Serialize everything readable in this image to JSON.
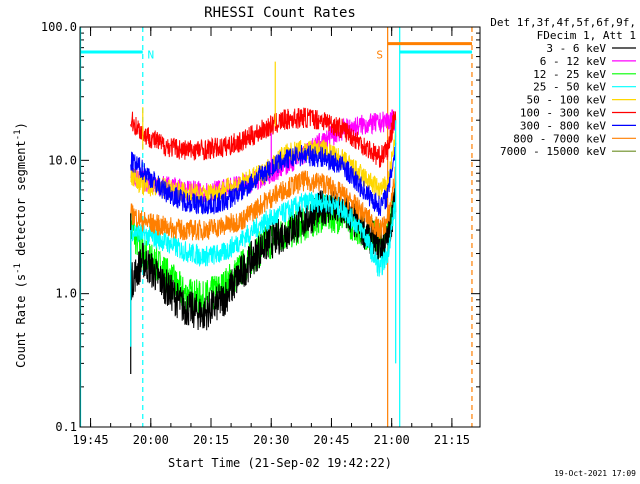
{
  "chart_data": {
    "type": "line",
    "title": "RHESSI Count Rates",
    "xlabel": "Start Time (21-Sep-02 19:42:22)",
    "ylabel_main": "Count Rate (s",
    "ylabel_exp1": "-1",
    "ylabel_mid": " detector segment",
    "ylabel_exp2": "-1",
    "ylabel_end": ")",
    "ylim": [
      0.1,
      100.0
    ],
    "y_scale": "log",
    "x_range": [
      "19:42:22",
      "21:22:00"
    ],
    "x_ticks": [
      "19:45",
      "20:00",
      "20:15",
      "20:30",
      "20:45",
      "21:00",
      "21:15"
    ],
    "y_ticks": [
      {
        "value": 0.1,
        "label": "0.1"
      },
      {
        "value": 1.0,
        "label": "1.0"
      },
      {
        "value": 10.0,
        "label": "10.0"
      },
      {
        "value": 100.0,
        "label": "100.0"
      }
    ],
    "legend_position": "right",
    "legend_header": [
      "Det 1f,3f,4f,5f,6f,9f,",
      "FDecim 1, Att 1"
    ],
    "series": [
      {
        "name": "3 - 6 keV",
        "color": "#000000",
        "points": [
          [
            "19:55",
            1.2
          ],
          [
            "19:58",
            1.8
          ],
          [
            "20:03",
            1.2
          ],
          [
            "20:08",
            0.8
          ],
          [
            "20:13",
            0.7
          ],
          [
            "20:18",
            0.9
          ],
          [
            "20:23",
            1.5
          ],
          [
            "20:28",
            2.3
          ],
          [
            "20:33",
            2.8
          ],
          [
            "20:38",
            3.5
          ],
          [
            "20:43",
            4.5
          ],
          [
            "20:48",
            4.2
          ],
          [
            "20:53",
            3.0
          ],
          [
            "20:57",
            2.3
          ],
          [
            "20:59",
            2.5
          ],
          [
            "21:01",
            5.5
          ]
        ]
      },
      {
        "name": "6 - 12 keV",
        "color": "#ff00ff",
        "points": [
          [
            "19:55",
            7.8
          ],
          [
            "19:58",
            7.0
          ],
          [
            "20:03",
            6.5
          ],
          [
            "20:08",
            6.0
          ],
          [
            "20:13",
            5.8
          ],
          [
            "20:18",
            6.0
          ],
          [
            "20:23",
            6.5
          ],
          [
            "20:28",
            7.5
          ],
          [
            "20:33",
            9.0
          ],
          [
            "20:38",
            11.0
          ],
          [
            "20:43",
            14.0
          ],
          [
            "20:48",
            17.0
          ],
          [
            "20:53",
            18.5
          ],
          [
            "20:57",
            19.0
          ],
          [
            "20:59",
            20.0
          ],
          [
            "21:01",
            20.0
          ]
        ]
      },
      {
        "name": "12 - 25 keV",
        "color": "#00ff00",
        "points": [
          [
            "19:55",
            3.2
          ],
          [
            "19:58",
            2.0
          ],
          [
            "20:03",
            1.5
          ],
          [
            "20:08",
            1.0
          ],
          [
            "20:13",
            0.9
          ],
          [
            "20:18",
            1.1
          ],
          [
            "20:23",
            1.6
          ],
          [
            "20:28",
            2.3
          ],
          [
            "20:33",
            2.8
          ],
          [
            "20:38",
            3.3
          ],
          [
            "20:43",
            4.0
          ],
          [
            "20:48",
            3.8
          ],
          [
            "20:53",
            3.0
          ],
          [
            "20:57",
            2.5
          ],
          [
            "20:59",
            2.6
          ],
          [
            "21:01",
            6.0
          ]
        ]
      },
      {
        "name": "25 - 50 keV",
        "color": "#00ffff",
        "points": [
          [
            "19:55",
            3.0
          ],
          [
            "19:58",
            2.8
          ],
          [
            "20:03",
            2.5
          ],
          [
            "20:08",
            2.1
          ],
          [
            "20:13",
            1.9
          ],
          [
            "20:18",
            2.0
          ],
          [
            "20:23",
            2.6
          ],
          [
            "20:28",
            3.4
          ],
          [
            "20:33",
            4.0
          ],
          [
            "20:38",
            4.8
          ],
          [
            "20:43",
            4.9
          ],
          [
            "20:48",
            4.3
          ],
          [
            "20:53",
            2.9
          ],
          [
            "20:57",
            1.5
          ],
          [
            "20:59",
            2.0
          ],
          [
            "21:01",
            5.0
          ]
        ]
      },
      {
        "name": "50 - 100 keV",
        "color": "#ffd700",
        "points": [
          [
            "19:55",
            8.0
          ],
          [
            "19:58",
            6.5
          ],
          [
            "20:03",
            6.2
          ],
          [
            "20:08",
            5.8
          ],
          [
            "20:13",
            5.5
          ],
          [
            "20:18",
            6.0
          ],
          [
            "20:23",
            6.8
          ],
          [
            "20:28",
            8.0
          ],
          [
            "20:33",
            11.0
          ],
          [
            "20:38",
            12.0
          ],
          [
            "20:43",
            12.0
          ],
          [
            "20:48",
            10.0
          ],
          [
            "20:53",
            7.5
          ],
          [
            "20:57",
            6.0
          ],
          [
            "20:59",
            6.5
          ],
          [
            "21:01",
            15.0
          ]
        ]
      },
      {
        "name": "100 - 300 keV",
        "color": "#ff0000",
        "points": [
          [
            "19:55",
            20.0
          ],
          [
            "19:58",
            16.0
          ],
          [
            "20:03",
            13.0
          ],
          [
            "20:08",
            12.0
          ],
          [
            "20:13",
            12.0
          ],
          [
            "20:18",
            12.5
          ],
          [
            "20:23",
            14.0
          ],
          [
            "20:28",
            17.0
          ],
          [
            "20:33",
            20.0
          ],
          [
            "20:38",
            21.0
          ],
          [
            "20:43",
            20.0
          ],
          [
            "20:48",
            17.0
          ],
          [
            "20:53",
            13.0
          ],
          [
            "20:57",
            10.5
          ],
          [
            "20:59",
            12.0
          ],
          [
            "21:01",
            23.0
          ]
        ]
      },
      {
        "name": "300 - 800 keV",
        "color": "#0000ff",
        "points": [
          [
            "19:55",
            9.8
          ],
          [
            "19:58",
            8.5
          ],
          [
            "20:03",
            6.0
          ],
          [
            "20:08",
            5.0
          ],
          [
            "20:13",
            4.6
          ],
          [
            "20:18",
            4.8
          ],
          [
            "20:23",
            6.0
          ],
          [
            "20:28",
            8.0
          ],
          [
            "20:33",
            10.0
          ],
          [
            "20:38",
            11.0
          ],
          [
            "20:43",
            10.5
          ],
          [
            "20:48",
            9.0
          ],
          [
            "20:53",
            6.0
          ],
          [
            "20:57",
            4.5
          ],
          [
            "20:59",
            5.5
          ],
          [
            "21:01",
            13.0
          ]
        ]
      },
      {
        "name": "800 - 7000 keV",
        "color": "#ff7f00",
        "points": [
          [
            "19:55",
            4.0
          ],
          [
            "19:58",
            3.5
          ],
          [
            "20:03",
            3.2
          ],
          [
            "20:08",
            3.0
          ],
          [
            "20:13",
            3.0
          ],
          [
            "20:18",
            3.2
          ],
          [
            "20:23",
            3.6
          ],
          [
            "20:28",
            4.8
          ],
          [
            "20:33",
            6.0
          ],
          [
            "20:38",
            7.0
          ],
          [
            "20:43",
            6.8
          ],
          [
            "20:48",
            5.5
          ],
          [
            "20:53",
            4.0
          ],
          [
            "20:57",
            3.0
          ],
          [
            "20:59",
            3.5
          ],
          [
            "21:01",
            8.0
          ]
        ]
      },
      {
        "name": "7000 - 15000 keV",
        "color": "#6b8e23",
        "points": []
      }
    ],
    "spikes": [
      {
        "time": "19:55",
        "from": 0.25,
        "to": 4.0,
        "color": "#000000"
      },
      {
        "time": "19:55",
        "from": 0.4,
        "to": 3.0,
        "color": "#00ffff"
      },
      {
        "time": "19:58",
        "from": 12.0,
        "to": 25.0,
        "color": "#ffd700"
      },
      {
        "time": "20:31",
        "from": 18.0,
        "to": 55.0,
        "color": "#ffd700"
      },
      {
        "time": "20:30",
        "from": 8.0,
        "to": 16.0,
        "color": "#ff00ff"
      },
      {
        "time": "21:01",
        "from": 0.3,
        "to": 20.0,
        "color": "#00ffff"
      }
    ],
    "annotations": [
      {
        "label": "N",
        "color": "#00ffff",
        "time": "19:58"
      },
      {
        "label": "S",
        "color": "#ff7f00",
        "time": "20:59"
      }
    ],
    "bands": [
      {
        "from": "19:42:22",
        "to": "19:58",
        "value": 65.0,
        "color": "#00ffff"
      },
      {
        "from": "20:59",
        "to": "21:20",
        "value": 75.0,
        "color": "#ff7f00"
      },
      {
        "from": "21:02",
        "to": "21:20",
        "value": 65.0,
        "color": "#00ffff"
      }
    ],
    "vlines": [
      {
        "time": "19:42:30",
        "color": "#00ffff",
        "dash": false
      },
      {
        "time": "19:58",
        "color": "#00ffff",
        "dash": true
      },
      {
        "time": "20:59",
        "color": "#ff7f00",
        "dash": false
      },
      {
        "time": "21:02",
        "color": "#00ffff",
        "dash": false
      },
      {
        "time": "21:20",
        "color": "#ff7f00",
        "dash": true
      }
    ],
    "footer_date": "19-Oct-2021 17:09"
  }
}
